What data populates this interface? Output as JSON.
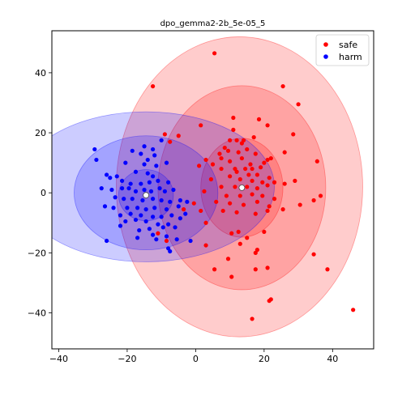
{
  "chart_data": {
    "type": "scatter",
    "title": "dpo_gemma2-2b_5e-05_5",
    "xlabel": "",
    "ylabel": "",
    "xlim": [
      -42,
      52
    ],
    "ylim": [
      -52,
      54
    ],
    "xticks": [
      -40,
      -20,
      0,
      20,
      40
    ],
    "yticks": [
      -40,
      -20,
      0,
      20,
      40
    ],
    "xtick_labels": [
      "−40",
      "−20",
      "0",
      "20",
      "40"
    ],
    "ytick_labels": [
      "−40",
      "−20",
      "0",
      "20",
      "40"
    ],
    "grid": false,
    "legend_position": "top-right",
    "series": [
      {
        "name": "safe",
        "color": "#ff0000",
        "centroid": [
          13.5,
          1.7
        ],
        "ellipses": [
          {
            "cx": 13.5,
            "cy": 1.7,
            "rx": 12.0,
            "ry": 16.5,
            "angle": 0
          },
          {
            "cx": 13.5,
            "cy": 1.7,
            "rx": 24.5,
            "ry": 34.0,
            "angle": 0
          },
          {
            "cx": 12.8,
            "cy": 2.0,
            "rx": 36.0,
            "ry": 50.0,
            "angle": 0
          }
        ],
        "points": [
          [
            5.5,
            46.5
          ],
          [
            -12.5,
            35.5
          ],
          [
            25.5,
            35.5
          ],
          [
            30,
            29.5
          ],
          [
            11,
            25
          ],
          [
            18.5,
            24.5
          ],
          [
            21,
            22.5
          ],
          [
            11,
            21
          ],
          [
            -9,
            19.5
          ],
          [
            -5,
            19
          ],
          [
            28.5,
            19.5
          ],
          [
            17,
            18.5
          ],
          [
            10,
            17.5
          ],
          [
            12,
            17.5
          ],
          [
            14,
            17.5
          ],
          [
            -7.5,
            17
          ],
          [
            1.5,
            22.5
          ],
          [
            8.5,
            15
          ],
          [
            13.5,
            16.5
          ],
          [
            15,
            14.5
          ],
          [
            7,
            13
          ],
          [
            9.5,
            14
          ],
          [
            12.5,
            13.5
          ],
          [
            17.5,
            13
          ],
          [
            21,
            11
          ],
          [
            22,
            11.5
          ],
          [
            26,
            13.5
          ],
          [
            35.5,
            10.5
          ],
          [
            3,
            11
          ],
          [
            5,
            9.5
          ],
          [
            7.5,
            11.5
          ],
          [
            10,
            10.5
          ],
          [
            13.5,
            11.5
          ],
          [
            16,
            9.5
          ],
          [
            20,
            10
          ],
          [
            7.5,
            8
          ],
          [
            11.5,
            8
          ],
          [
            14.5,
            8
          ],
          [
            16.5,
            8
          ],
          [
            19,
            8.5
          ],
          [
            1,
            9
          ],
          [
            12,
            7
          ],
          [
            15.5,
            6
          ],
          [
            18,
            6
          ],
          [
            21.5,
            5
          ],
          [
            26,
            3
          ],
          [
            29,
            4
          ],
          [
            4.5,
            4.5
          ],
          [
            10,
            5.5
          ],
          [
            13,
            4.5
          ],
          [
            16.5,
            4
          ],
          [
            19.5,
            3.5
          ],
          [
            23,
            3.5
          ],
          [
            7.5,
            2
          ],
          [
            11.5,
            2
          ],
          [
            15,
            2
          ],
          [
            18,
            1.5
          ],
          [
            21,
            2.5
          ],
          [
            36.5,
            -1
          ],
          [
            34.5,
            -2.5
          ],
          [
            2.5,
            0.5
          ],
          [
            9,
            -1
          ],
          [
            13,
            -1
          ],
          [
            16.5,
            -0.5
          ],
          [
            19.5,
            -1
          ],
          [
            23,
            -2
          ],
          [
            -0.5,
            -3.5
          ],
          [
            6,
            -3
          ],
          [
            10,
            -3.5
          ],
          [
            14,
            -4
          ],
          [
            18,
            -3
          ],
          [
            21.5,
            -4.5
          ],
          [
            25.5,
            -5.5
          ],
          [
            30.5,
            -4
          ],
          [
            -3.5,
            -5.5
          ],
          [
            1.5,
            -6
          ],
          [
            8,
            -6
          ],
          [
            12,
            -6.5
          ],
          [
            17.5,
            -7
          ],
          [
            21,
            -6
          ],
          [
            3,
            -10
          ],
          [
            10.5,
            -13.5
          ],
          [
            12.5,
            -13
          ],
          [
            15,
            -15
          ],
          [
            20,
            -13
          ],
          [
            -11,
            -13.5
          ],
          [
            -8.5,
            -16
          ],
          [
            3,
            -17.5
          ],
          [
            13,
            -17
          ],
          [
            9.5,
            -22
          ],
          [
            18,
            -19
          ],
          [
            17.5,
            -20
          ],
          [
            34.5,
            -20.5
          ],
          [
            5.5,
            -25.5
          ],
          [
            17.5,
            -25.5
          ],
          [
            21,
            -25
          ],
          [
            10.5,
            -28
          ],
          [
            38.5,
            -25.5
          ],
          [
            22,
            -35.5
          ],
          [
            21.5,
            -36
          ],
          [
            16.5,
            -42
          ],
          [
            46,
            -39
          ]
        ]
      },
      {
        "name": "harm",
        "color": "#0000ff",
        "centroid": [
          -14.5,
          -0.8
        ],
        "ellipses": [
          {
            "cx": -14.5,
            "cy": -0.8,
            "rx": 8.0,
            "ry": 8.5,
            "angle": 0
          },
          {
            "cx": -14.5,
            "cy": 0.0,
            "rx": 21.0,
            "ry": 19.0,
            "angle": 0
          },
          {
            "cx": -14.5,
            "cy": 2.0,
            "rx": 37.5,
            "ry": 25.0,
            "angle": 0
          }
        ],
        "points": [
          [
            -29.5,
            14.5
          ],
          [
            -29,
            11
          ],
          [
            -18.5,
            14
          ],
          [
            -15,
            15.5
          ],
          [
            -12.5,
            14.5
          ],
          [
            -16,
            13
          ],
          [
            -12,
            12.5
          ],
          [
            -10,
            17.5
          ],
          [
            -14,
            11
          ],
          [
            -20.5,
            10
          ],
          [
            -15,
            9.5
          ],
          [
            -11.5,
            9
          ],
          [
            -8.5,
            10
          ],
          [
            -26,
            6
          ],
          [
            -25,
            5
          ],
          [
            -23,
            5.5
          ],
          [
            -17.5,
            7
          ],
          [
            -14,
            6.5
          ],
          [
            -12.5,
            5.5
          ],
          [
            -21.5,
            4
          ],
          [
            -19,
            3
          ],
          [
            -16,
            3
          ],
          [
            -13.5,
            3.5
          ],
          [
            -11,
            4
          ],
          [
            -8,
            3.5
          ],
          [
            -27.5,
            1.5
          ],
          [
            -24.5,
            1
          ],
          [
            -21.5,
            1.5
          ],
          [
            -19.5,
            1.5
          ],
          [
            -17.5,
            0.5
          ],
          [
            -15,
            1
          ],
          [
            -13,
            0.5
          ],
          [
            -10.5,
            1.5
          ],
          [
            -9,
            0.5
          ],
          [
            -6.5,
            1
          ],
          [
            -23.5,
            -1.5
          ],
          [
            -21,
            -2
          ],
          [
            -18.5,
            -2
          ],
          [
            -15.5,
            -2.5
          ],
          [
            -12.5,
            -2
          ],
          [
            -10,
            -2.5
          ],
          [
            -7.5,
            -3
          ],
          [
            -4.5,
            -2.5
          ],
          [
            -26.5,
            -4.5
          ],
          [
            -24,
            -5
          ],
          [
            -20,
            -5
          ],
          [
            -17,
            -5
          ],
          [
            -14.5,
            -5.5
          ],
          [
            -12,
            -5
          ],
          [
            -8.5,
            -5.5
          ],
          [
            -5,
            -4.5
          ],
          [
            -2.5,
            -3
          ],
          [
            -22,
            -7.5
          ],
          [
            -19,
            -7
          ],
          [
            -16,
            -7.5
          ],
          [
            -12.5,
            -8
          ],
          [
            -10,
            -8
          ],
          [
            -7,
            -7.5
          ],
          [
            -3,
            -7
          ],
          [
            -20.5,
            -9.5
          ],
          [
            -17.5,
            -9
          ],
          [
            -14.5,
            -9.5
          ],
          [
            -11,
            -10.5
          ],
          [
            -8,
            -10.5
          ],
          [
            -4.5,
            -8.5
          ],
          [
            -22,
            -11
          ],
          [
            -16.5,
            -12.5
          ],
          [
            -13.5,
            -12
          ],
          [
            -9.5,
            -11.5
          ],
          [
            -6,
            -11.5
          ],
          [
            -12.5,
            -14
          ],
          [
            -8.5,
            -14.5
          ],
          [
            -17,
            -15
          ],
          [
            -11.5,
            -15.5
          ],
          [
            -5.5,
            -15.5
          ],
          [
            -1.5,
            -16
          ],
          [
            -26,
            -16
          ],
          [
            -8,
            -18.5
          ],
          [
            -7.5,
            -19.5
          ]
        ]
      }
    ]
  }
}
